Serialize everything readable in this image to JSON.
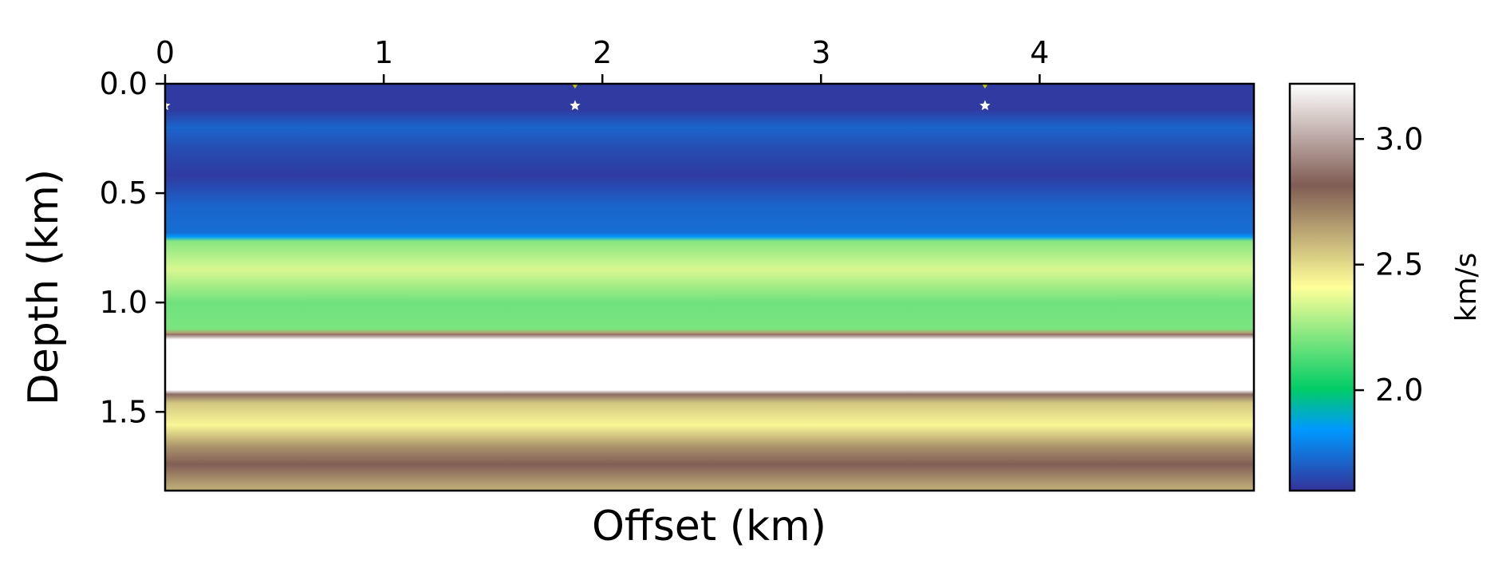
{
  "chart_data": {
    "type": "heatmap",
    "title": "",
    "xlabel": "Offset (km)",
    "ylabel": "Depth (km)",
    "xlim": [
      0,
      4.98
    ],
    "ylim": [
      0,
      1.86
    ],
    "y_inverted": true,
    "x_axis_position": "top",
    "x_ticks": [
      {
        "value": 0,
        "label": "0"
      },
      {
        "value": 1,
        "label": "1"
      },
      {
        "value": 2,
        "label": "2"
      },
      {
        "value": 3,
        "label": "3"
      },
      {
        "value": 4,
        "label": "4"
      }
    ],
    "y_ticks": [
      {
        "value": 0.0,
        "label": "0.0"
      },
      {
        "value": 0.5,
        "label": "0.5"
      },
      {
        "value": 1.0,
        "label": "1.0"
      },
      {
        "value": 1.5,
        "label": "1.5"
      }
    ],
    "colormap": "terrain",
    "velocity_profile": [
      {
        "depth": 0.0,
        "velocity": 1.62
      },
      {
        "depth": 0.12,
        "velocity": 1.62
      },
      {
        "depth": 0.2,
        "velocity": 1.72
      },
      {
        "depth": 0.3,
        "velocity": 1.66
      },
      {
        "depth": 0.42,
        "velocity": 1.62
      },
      {
        "depth": 0.56,
        "velocity": 1.72
      },
      {
        "depth": 0.68,
        "velocity": 1.74
      },
      {
        "depth": 0.7,
        "velocity": 1.85
      },
      {
        "depth": 0.72,
        "velocity": 2.22
      },
      {
        "depth": 0.85,
        "velocity": 2.35
      },
      {
        "depth": 1.0,
        "velocity": 2.18
      },
      {
        "depth": 1.12,
        "velocity": 2.2
      },
      {
        "depth": 1.14,
        "velocity": 2.65
      },
      {
        "depth": 1.145,
        "velocity": 2.85
      },
      {
        "depth": 1.17,
        "velocity": 3.22
      },
      {
        "depth": 1.4,
        "velocity": 3.22
      },
      {
        "depth": 1.42,
        "velocity": 2.85
      },
      {
        "depth": 1.46,
        "velocity": 2.55
      },
      {
        "depth": 1.56,
        "velocity": 2.43
      },
      {
        "depth": 1.66,
        "velocity": 2.68
      },
      {
        "depth": 1.74,
        "velocity": 2.82
      },
      {
        "depth": 1.86,
        "velocity": 2.6
      }
    ],
    "sources": [
      {
        "x": 0.0,
        "depth": 0.1
      },
      {
        "x": 1.875,
        "depth": 0.1
      },
      {
        "x": 3.75,
        "depth": 0.1
      }
    ],
    "receivers": [
      {
        "x": 1.875,
        "depth": 0.0
      },
      {
        "x": 3.75,
        "depth": 0.0
      }
    ],
    "colorbar": {
      "label": "km/s",
      "vmin": 1.6,
      "vmax": 3.22,
      "ticks": [
        {
          "value": 2.0,
          "label": "2.0"
        },
        {
          "value": 2.5,
          "label": "2.5"
        },
        {
          "value": 3.0,
          "label": "3.0"
        }
      ]
    },
    "colors": {
      "source_marker": "#ffffff",
      "receiver_marker": "#c8c800"
    }
  }
}
